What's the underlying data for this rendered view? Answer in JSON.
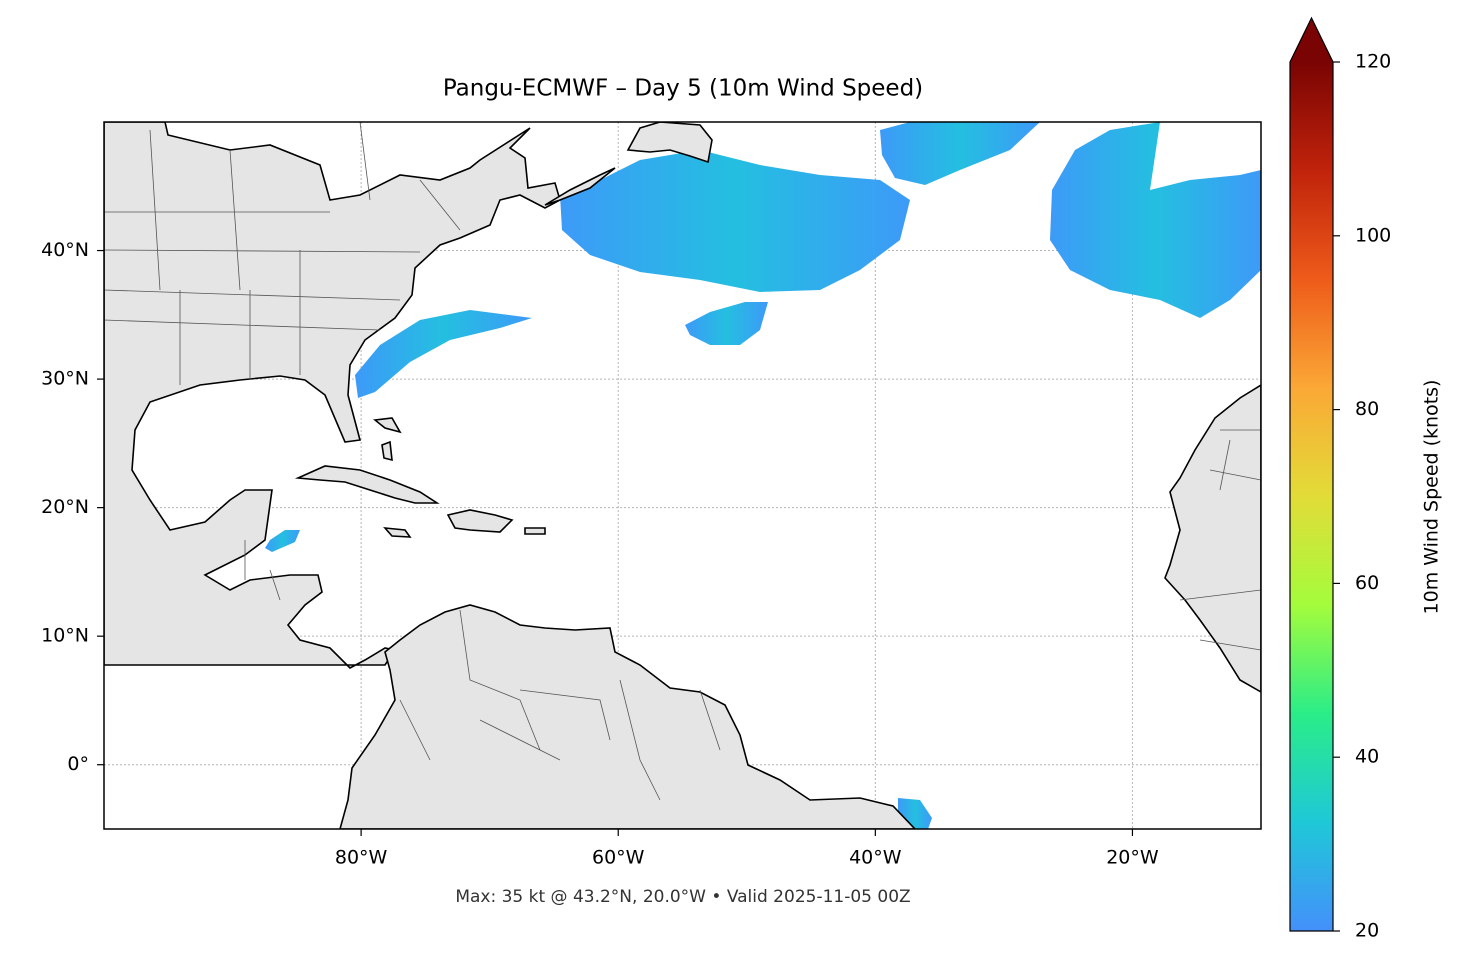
{
  "chart_data": {
    "type": "map",
    "title": "Pangu-ECMWF – Day 5 (10m Wind Speed)",
    "footnote": "Max: 35 kt @ 43.2°N, 20.0°W • Valid 2025-11-05 00Z",
    "xlim": [
      -100,
      -10
    ],
    "ylim": [
      -5,
      50
    ],
    "xticks": [
      {
        "value": -80,
        "label": "80°W"
      },
      {
        "value": -60,
        "label": "60°W"
      },
      {
        "value": -40,
        "label": "40°W"
      },
      {
        "value": -20,
        "label": "20°W"
      }
    ],
    "yticks": [
      {
        "value": 0,
        "label": "0°"
      },
      {
        "value": 10,
        "label": "10°N"
      },
      {
        "value": 20,
        "label": "20°N"
      },
      {
        "value": 30,
        "label": "30°N"
      },
      {
        "value": 40,
        "label": "40°N"
      }
    ],
    "grid": true,
    "colorbar": {
      "label": "10m Wind Speed (knots)",
      "lim": [
        20,
        120
      ],
      "ticks": [
        20,
        40,
        60,
        80,
        100,
        120
      ],
      "extend": "max",
      "colors": [
        "#4490fb",
        "#1fc8d7",
        "#2aed88",
        "#a4fc3c",
        "#e2dc38",
        "#fba836",
        "#ee5b1a",
        "#c0230b",
        "#7a0403"
      ]
    }
  }
}
